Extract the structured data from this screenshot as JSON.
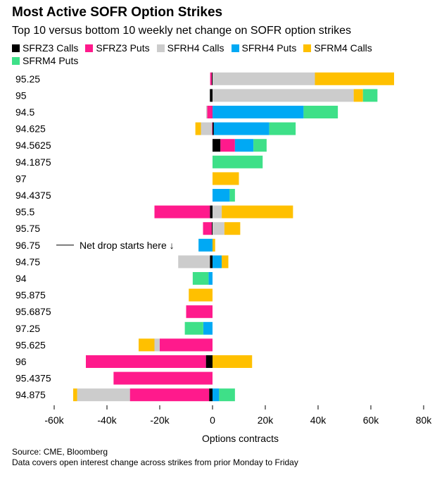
{
  "header": {
    "title": "Most Active SOFR Option Strikes",
    "subtitle": "Top 10 versus bottom 10 weekly net change on SOFR option strikes"
  },
  "footer": {
    "source": "Source: CME, Bloomberg",
    "note": "Data covers open interest change across strikes from prior Monday to Friday"
  },
  "chart_data": {
    "type": "bar",
    "orientation": "horizontal",
    "stacked": true,
    "title": "Most Active SOFR Option Strikes",
    "xlabel": "Options contracts",
    "ylabel": "",
    "xlim": [
      -60000,
      80000
    ],
    "xticks": [
      -60000,
      -40000,
      -20000,
      0,
      20000,
      40000,
      60000,
      80000
    ],
    "xtick_labels": [
      "-60k",
      "-40k",
      "-20k",
      "0",
      "20k",
      "40k",
      "60k",
      "80k"
    ],
    "legend_position": "top",
    "categories": [
      "95.25",
      "95",
      "94.5",
      "94.625",
      "94.5625",
      "94.1875",
      "97",
      "94.4375",
      "95.5",
      "95.75",
      "96.75",
      "94.75",
      "94",
      "95.875",
      "95.6875",
      "97.25",
      "95.625",
      "96",
      "95.4375",
      "94.875"
    ],
    "series": [
      {
        "name": "SFRZ3 Calls",
        "color": "#000000",
        "values": [
          -300,
          -1000,
          0,
          500,
          3000,
          0,
          0,
          0,
          -1000,
          -300,
          0,
          -1000,
          0,
          0,
          0,
          0,
          0,
          -2500,
          0,
          -1300
        ]
      },
      {
        "name": "SFRZ3 Puts",
        "color": "#ff1a8c",
        "values": [
          -600,
          0,
          -2000,
          -200,
          5500,
          0,
          0,
          0,
          -21000,
          -3300,
          0,
          0,
          0,
          0,
          -10000,
          0,
          -20000,
          -45500,
          -37500,
          -30000
        ]
      },
      {
        "name": "SFRH4 Calls",
        "color": "#cccccc",
        "values": [
          38800,
          53500,
          -400,
          -4200,
          0,
          0,
          0,
          0,
          3500,
          4500,
          0,
          -12000,
          0,
          0,
          0,
          0,
          -2000,
          0,
          0,
          -20000
        ]
      },
      {
        "name": "SFRH4 Puts",
        "color": "#00a9f4",
        "values": [
          0,
          0,
          34500,
          21000,
          7000,
          0,
          0,
          6500,
          0,
          0,
          -5300,
          3500,
          -1500,
          0,
          0,
          -3500,
          0,
          0,
          0,
          2500
        ]
      },
      {
        "name": "SFRM4 Calls",
        "color": "#ffc000",
        "values": [
          30000,
          3500,
          0,
          -2100,
          0,
          0,
          10000,
          0,
          27000,
          6000,
          1000,
          2500,
          0,
          -9000,
          0,
          0,
          -6000,
          15000,
          0,
          -1500
        ]
      },
      {
        "name": "SFRM4 Puts",
        "color": "#3ee088",
        "values": [
          0,
          5500,
          13000,
          10000,
          5000,
          19000,
          0,
          2000,
          0,
          0,
          0,
          0,
          -6000,
          0,
          0,
          -7000,
          0,
          0,
          0,
          6000
        ]
      }
    ],
    "annotations": [
      {
        "category": "96.75",
        "text": "Net drop starts here ↓"
      }
    ]
  }
}
